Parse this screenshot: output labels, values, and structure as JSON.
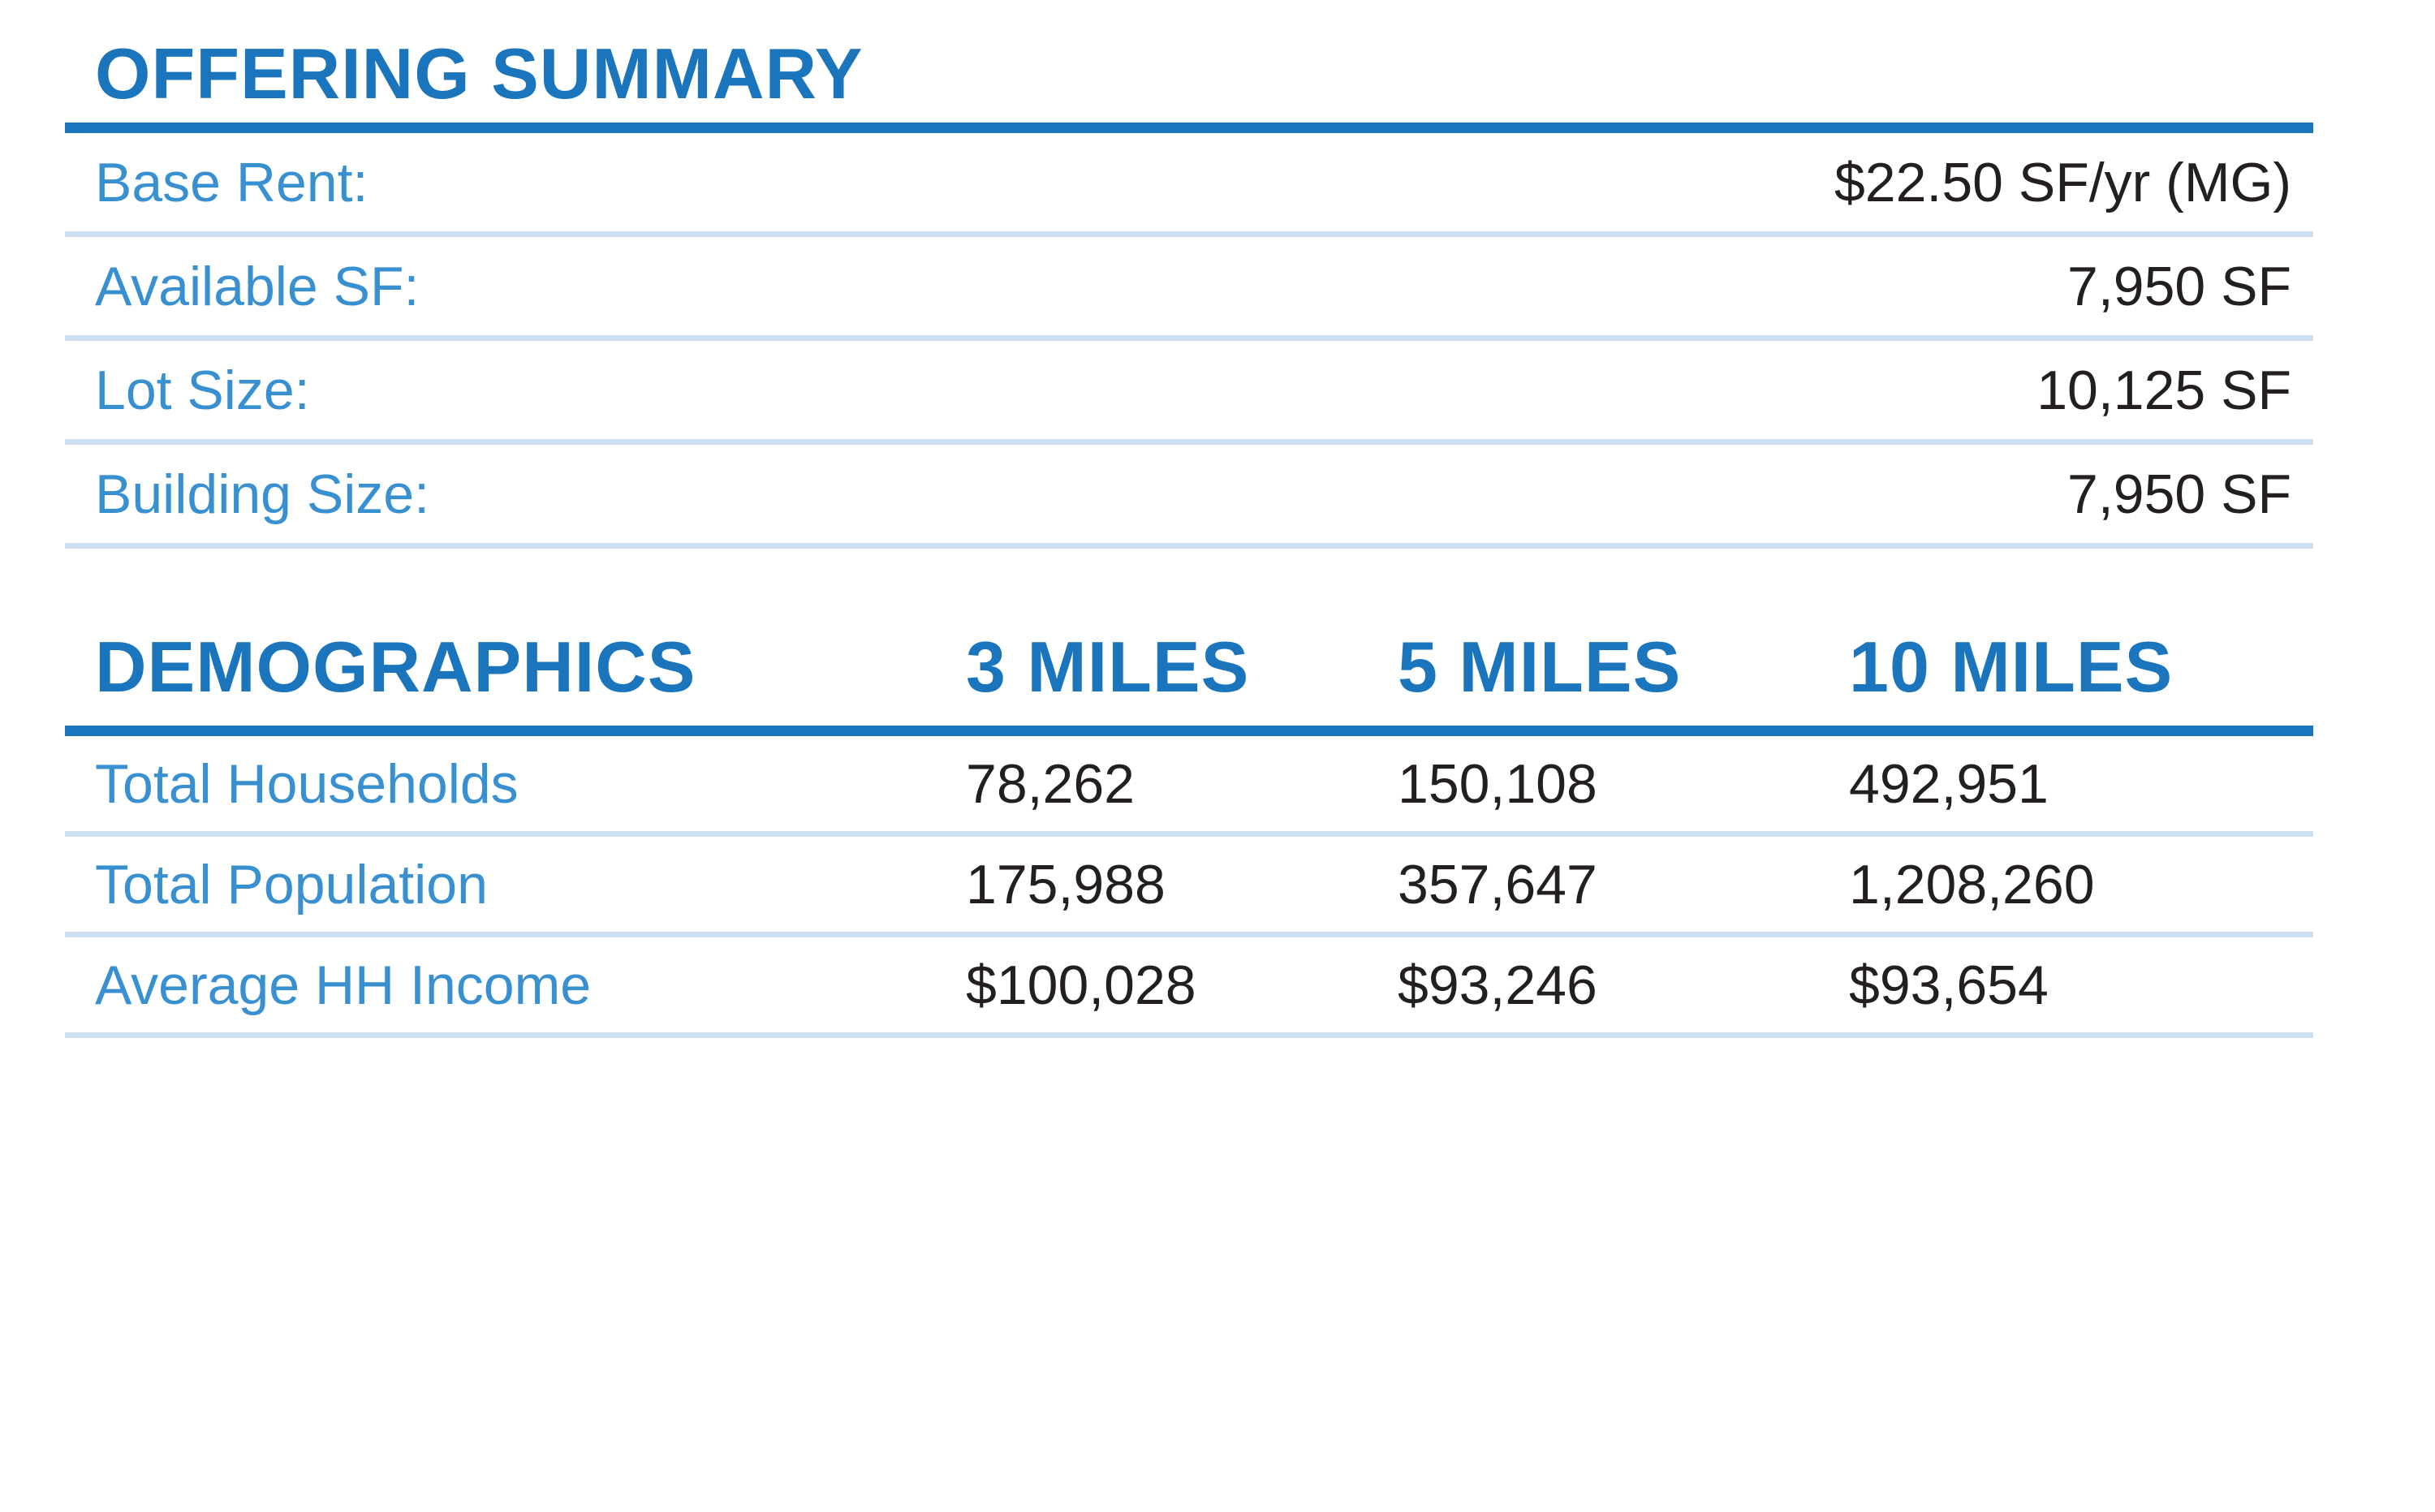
{
  "offering_summary": {
    "title": "OFFERING SUMMARY",
    "rows": [
      {
        "label": "Base Rent:",
        "value": "$22.50 SF/yr (MG)"
      },
      {
        "label": "Available SF:",
        "value": "7,950 SF"
      },
      {
        "label": "Lot Size:",
        "value": "10,125 SF"
      },
      {
        "label": "Building Size:",
        "value": "7,950 SF"
      }
    ]
  },
  "demographics": {
    "title": "DEMOGRAPHICS",
    "columns": [
      "3 MILES",
      "5 MILES",
      "10 MILES"
    ],
    "rows": [
      {
        "label": "Total Households",
        "values": [
          "78,262",
          "150,108",
          "492,951"
        ]
      },
      {
        "label": "Total Population",
        "values": [
          "175,988",
          "357,647",
          "1,208,260"
        ]
      },
      {
        "label": "Average HH Income",
        "values": [
          "$100,028",
          "$93,246",
          "$93,654"
        ]
      }
    ]
  },
  "colors": {
    "brand_blue": "#1b75bc",
    "label_blue": "#3990d0",
    "value_dark": "#231f20",
    "rule_light": "#cde0f2",
    "background": "#ffffff"
  }
}
